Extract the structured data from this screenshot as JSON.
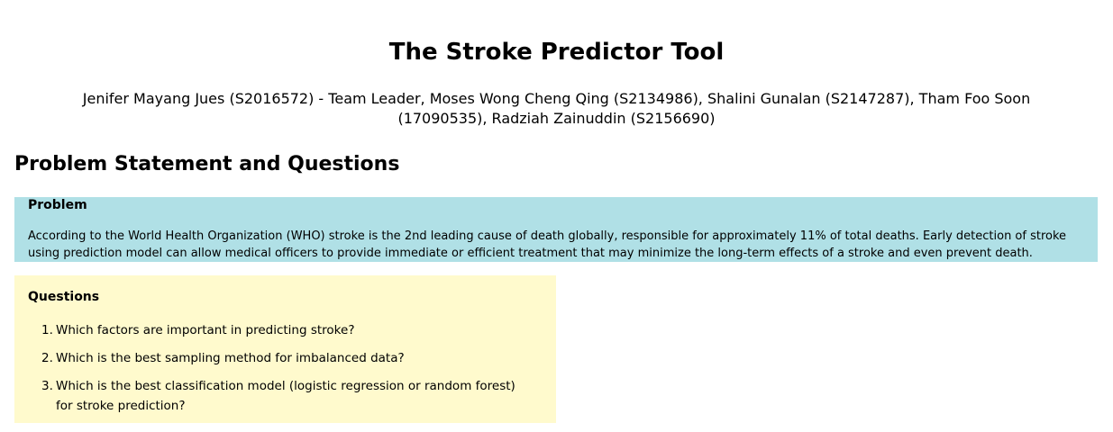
{
  "title": "The Stroke Predictor Tool",
  "authors": "Jenifer Mayang Jues (S2016572) - Team Leader, Moses Wong Cheng Qing (S2134986), Shalini Gunalan (S2147287), Tham Foo Soon (17090535), Radziah Zainuddin (S2156690)",
  "section_heading": "Problem Statement and Questions",
  "problem": {
    "heading": "Problem",
    "text": "According to the World Health Organization (WHO) stroke is the 2nd leading cause of death globally, responsible for approximately 11% of total deaths. Early detection of stroke using prediction model can allow medical officers to provide immediate or efficient treatment that may minimize the long-term effects of a stroke and even prevent death.",
    "background": "#b0e0e6"
  },
  "questions": {
    "heading": "Questions",
    "background": "#fffacd",
    "items": [
      {
        "num": "1.",
        "text": "Which factors are important in predicting stroke?"
      },
      {
        "num": "2.",
        "text": "Which is the best sampling method for imbalanced data?"
      },
      {
        "num": "3.",
        "text": "Which is the best classification model (logistic regression or random forest) for stroke prediction?"
      }
    ]
  }
}
